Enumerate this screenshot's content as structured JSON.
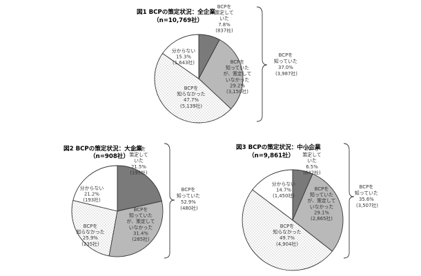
{
  "colors": {
    "known_drafted": "#7a7a7a",
    "known_not_drafted": "#b9b9b9",
    "not_known": "#ffffff",
    "unknown": "#ffffff",
    "stroke": "#333333",
    "dots": "#8a8a8a"
  },
  "chart_data": [
    {
      "type": "pie",
      "title": "図1 BCPの策定状況：全企業",
      "subtitle": "（n=10,769社）",
      "slices": [
        {
          "lines": [
            "BCPを",
            "策定して",
            "いた",
            "7.8%",
            "(837社)"
          ],
          "value": 7.8,
          "count": 837
        },
        {
          "lines": [
            "BCPを",
            "知っていた",
            "が、策定して",
            "いなかった",
            "29.2%",
            "(3,150社)"
          ],
          "value": 29.2,
          "count": 3150
        },
        {
          "lines": [
            "BCPを",
            "知らなかった",
            "47.7%",
            "(5,139社)"
          ],
          "value": 47.7,
          "count": 5139
        },
        {
          "lines": [
            "分からない",
            "15.3%",
            "(1,643社)"
          ],
          "value": 15.3,
          "count": 1643
        }
      ],
      "bracket": {
        "lines": [
          "BCPを",
          "知っていた",
          "37.0%",
          "(3,987社)"
        ],
        "value": 37.0,
        "count": 3987
      }
    },
    {
      "type": "pie",
      "title": "図2 BCPの策定状況：大企業",
      "subtitle": "（n=908社）",
      "slices": [
        {
          "lines": [
            "BCPを",
            "策定して",
            "いた",
            "21.5%",
            "(195社)"
          ],
          "value": 21.5,
          "count": 195
        },
        {
          "lines": [
            "BCPを",
            "知っていた",
            "が、策定して",
            "いなかった",
            "31.4%",
            "(285社)"
          ],
          "value": 31.4,
          "count": 285
        },
        {
          "lines": [
            "BCPを",
            "知らなかった",
            "25.9%",
            "(235社)"
          ],
          "value": 25.9,
          "count": 235
        },
        {
          "lines": [
            "分からない",
            "21.2%",
            "(193社)"
          ],
          "value": 21.2,
          "count": 193
        }
      ],
      "bracket": {
        "lines": [
          "BCPを",
          "知っていた",
          "52.9%",
          "(480社)"
        ],
        "value": 52.9,
        "count": 480
      }
    },
    {
      "type": "pie",
      "title": "図3 BCPの策定状況：中小企業",
      "subtitle": "（n=9,861社）",
      "slices": [
        {
          "lines": [
            "BCPを",
            "策定して",
            "いた",
            "6.5%",
            "(642社)"
          ],
          "value": 6.5,
          "count": 642
        },
        {
          "lines": [
            "BCPを",
            "知っていた",
            "が、策定して",
            "いなかった",
            "29.1%",
            "(2,865社)"
          ],
          "value": 29.1,
          "count": 2865
        },
        {
          "lines": [
            "BCPを",
            "知らなかった",
            "49.7%",
            "(4,904社)"
          ],
          "value": 49.7,
          "count": 4904
        },
        {
          "lines": [
            "分からない",
            "14.7%",
            "(1,450社)"
          ],
          "value": 14.7,
          "count": 1450
        }
      ],
      "bracket": {
        "lines": [
          "BCPを",
          "知っていた",
          "35.6%",
          "(3,507社)"
        ],
        "value": 35.6,
        "count": 3507
      }
    }
  ]
}
